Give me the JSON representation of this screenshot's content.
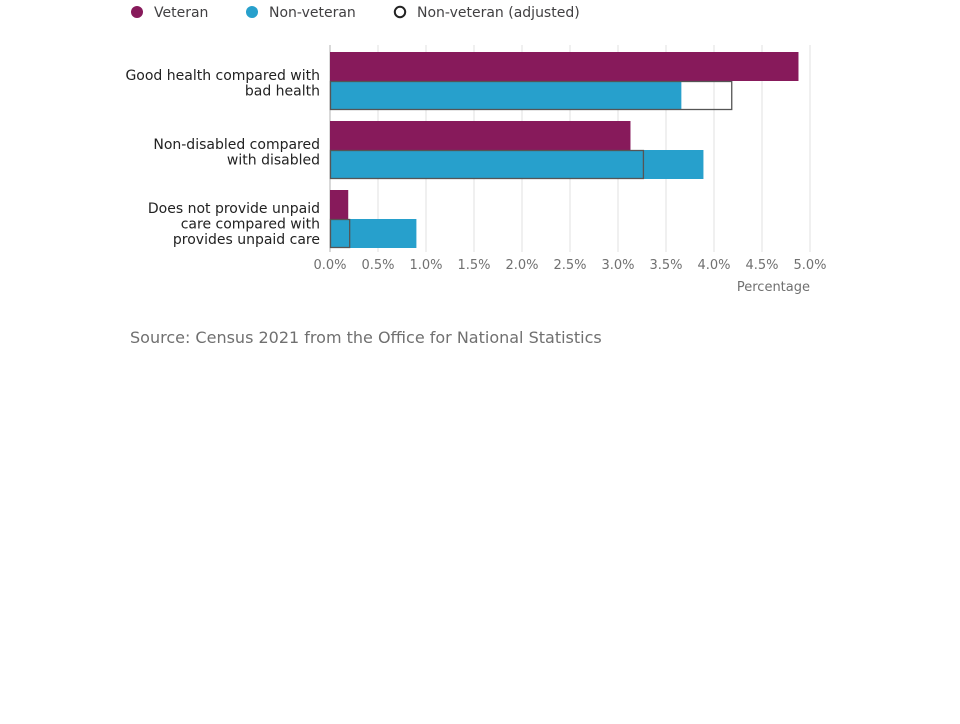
{
  "chart_data": {
    "type": "bar",
    "orientation": "horizontal",
    "categories": [
      [
        "Good health compared with",
        "bad health"
      ],
      [
        "Non-disabled compared",
        "with disabled"
      ],
      [
        "Does not provide unpaid",
        "care compared with",
        "provides unpaid care"
      ]
    ],
    "series": [
      {
        "name": "Veteran",
        "values": [
          4.88,
          3.13,
          0.19
        ],
        "color": "#871a5b",
        "style": "filled"
      },
      {
        "name": "Non-veteran",
        "values": [
          3.66,
          3.89,
          0.9
        ],
        "color": "#27a0cc",
        "style": "filled"
      },
      {
        "name": "Non-veteran (adjusted)",
        "values": [
          4.19,
          3.27,
          0.21
        ],
        "color": "#222222",
        "style": "outline"
      }
    ],
    "xlim": [
      0,
      5
    ],
    "xticks": [
      0,
      0.5,
      1,
      1.5,
      2,
      2.5,
      3,
      3.5,
      4,
      4.5,
      5
    ],
    "xtick_labels": [
      "0.0%",
      "0.5%",
      "1.0%",
      "1.5%",
      "2.0%",
      "2.5%",
      "3.0%",
      "3.5%",
      "4.0%",
      "4.5%",
      "5.0%"
    ],
    "xlabel": "Percentage",
    "ylabel": "",
    "title": "",
    "grid": "vertical",
    "legend_position": "top-left"
  },
  "source": "Source: Census 2021 from the Office for National Statistics"
}
